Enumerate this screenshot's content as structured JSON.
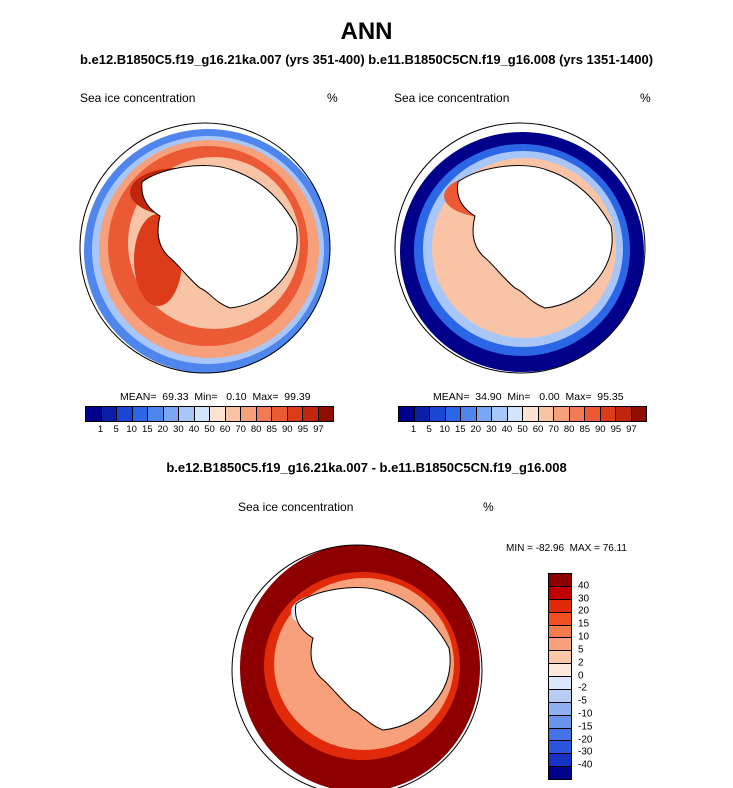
{
  "title": "ANN",
  "subtitle": "b.e12.B1850C5.f19_g16.21ka.007 (yrs 351-400) b.e11.B1850C5CN.f19_g16.008 (yrs 1351-1400)",
  "panels": [
    {
      "variable": "Sea ice concentration",
      "units": "%",
      "stats": "MEAN=  69.33  Min=   0.10  Max=  99.39",
      "levels": [
        "1",
        "5",
        "10",
        "15",
        "20",
        "30",
        "40",
        "50",
        "60",
        "70",
        "80",
        "85",
        "90",
        "95",
        "97"
      ]
    },
    {
      "variable": "Sea ice concentration",
      "units": "%",
      "stats": "MEAN=  34.90  Min=   0.00  Max=  95.35",
      "levels": [
        "1",
        "5",
        "10",
        "15",
        "20",
        "30",
        "40",
        "50",
        "60",
        "70",
        "80",
        "85",
        "90",
        "95",
        "97"
      ]
    }
  ],
  "colors": {
    "abs_palette": [
      "#00008b",
      "#0a1ea8",
      "#1946d2",
      "#2a66e6",
      "#4f86ee",
      "#7aa6f3",
      "#a8c6f8",
      "#d4e4fb",
      "#fbe2d2",
      "#f9c3a6",
      "#f6a07c",
      "#f27b56",
      "#ec5a35",
      "#dd3c1a",
      "#c0250d",
      "#8e0e02"
    ],
    "diff_palette": [
      "#8e0000",
      "#c00000",
      "#e02a0a",
      "#ef4f22",
      "#f57b4c",
      "#f8a07c",
      "#fbc8aa",
      "#fde9dc",
      "#dde8fb",
      "#b8cdf6",
      "#8fb1f1",
      "#6a93ec",
      "#4473e6",
      "#2a55dc",
      "#1733c6",
      "#00008b"
    ],
    "land": "#ffffff",
    "coast": "#000000"
  },
  "difference": {
    "title": "b.e12.B1850C5.f19_g16.21ka.007 - b.e11.B1850C5CN.f19_g16.008",
    "variable": "Sea ice concentration",
    "units": "%",
    "minmax": "MIN = -82.96  MAX = 76.11",
    "levels": [
      "40",
      "30",
      "20",
      "15",
      "10",
      "5",
      "2",
      "0",
      "-2",
      "-5",
      "-10",
      "-15",
      "-20",
      "-30",
      "-40"
    ]
  }
}
